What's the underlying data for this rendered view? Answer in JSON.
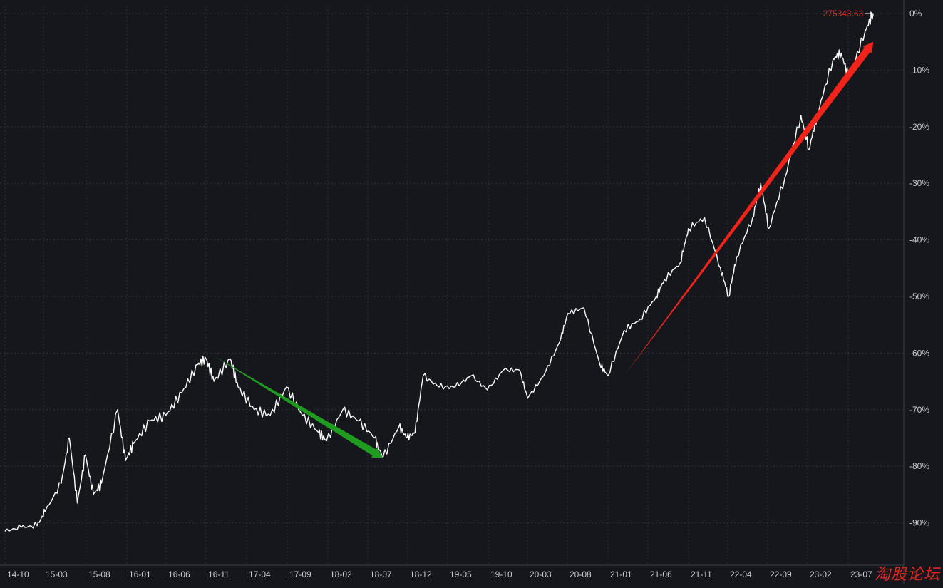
{
  "chart_data": {
    "type": "line",
    "title": "",
    "xlabel": "",
    "ylabel": "",
    "background": "#15171c",
    "line_color": "#ffffff",
    "grid": true,
    "grid_color": "#2e323b",
    "x_ticks": [
      "14-10",
      "15-03",
      "15-08",
      "16-01",
      "16-06",
      "16-11",
      "17-04",
      "17-09",
      "18-02",
      "18-07",
      "18-12",
      "19-05",
      "19-10",
      "20-03",
      "20-08",
      "21-01",
      "21-06",
      "21-11",
      "22-04",
      "22-09",
      "23-02",
      "23-07"
    ],
    "y_ticks": [
      "0%",
      "-10%",
      "-20%",
      "-30%",
      "-40%",
      "-50%",
      "-60%",
      "-70%",
      "-80%",
      "-90%"
    ],
    "y_tick_values": [
      0,
      -10,
      -20,
      -30,
      -40,
      -50,
      -60,
      -70,
      -80,
      -90
    ],
    "ylim": [
      -92.5,
      1
    ],
    "last_value_label": "275343.63",
    "last_value_color": "#e8261c",
    "series": [
      {
        "x": [
          "14-10",
          "14-12",
          "15-02",
          "15-03",
          "15-05",
          "15-06",
          "15-07",
          "15-08",
          "15-09",
          "15-10",
          "15-12",
          "16-01",
          "16-02",
          "16-04",
          "16-06",
          "16-08",
          "16-10",
          "16-11",
          "16-12",
          "17-02",
          "17-03",
          "17-05",
          "17-07",
          "17-09",
          "17-11",
          "18-01",
          "18-02",
          "18-04",
          "18-06",
          "18-08",
          "18-09",
          "18-11",
          "18-12",
          "19-01",
          "19-02",
          "19-04",
          "19-06",
          "19-08",
          "19-10",
          "19-12",
          "20-02",
          "20-03",
          "20-05",
          "20-07",
          "20-08",
          "20-10",
          "20-12",
          "21-01",
          "21-03",
          "21-05",
          "21-07",
          "21-08",
          "21-10",
          "21-11",
          "22-01",
          "22-03",
          "22-04",
          "22-05",
          "22-07",
          "22-08",
          "22-09",
          "22-11",
          "23-01",
          "23-02",
          "23-03",
          "23-05",
          "23-06",
          "23-07",
          "23-09",
          "23-10"
        ],
        "y": [
          -91.5,
          -90.8,
          -90.5,
          -88,
          -83,
          -75,
          -86.5,
          -78,
          -85,
          -83,
          -70,
          -79,
          -76,
          -72,
          -71,
          -67,
          -62,
          -61,
          -65,
          -61,
          -66,
          -70,
          -71,
          -66,
          -71,
          -74,
          -75.5,
          -70,
          -72,
          -75,
          -78.5,
          -73,
          -75,
          -74,
          -64,
          -66,
          -66,
          -64,
          -66.5,
          -63,
          -63,
          -68,
          -64,
          -58,
          -53,
          -52,
          -62,
          -64,
          -56,
          -54,
          -50,
          -47,
          -44,
          -38,
          -36,
          -45,
          -50,
          -43,
          -36,
          -30,
          -38,
          -29,
          -18,
          -24,
          -18,
          -8,
          -7,
          -11.5,
          -3,
          0
        ]
      }
    ],
    "annotations": [
      {
        "type": "arrow",
        "color": "#1f9c1f",
        "from": {
          "x": "16-12",
          "y": -60.5
        },
        "to": {
          "x": "18-09",
          "y": -78.5
        }
      },
      {
        "type": "arrow",
        "color": "#f2241a",
        "from": {
          "x": "21-03",
          "y": -64
        },
        "to": {
          "x": "23-10",
          "y": -5
        }
      }
    ]
  },
  "watermark": "淘股论坛"
}
